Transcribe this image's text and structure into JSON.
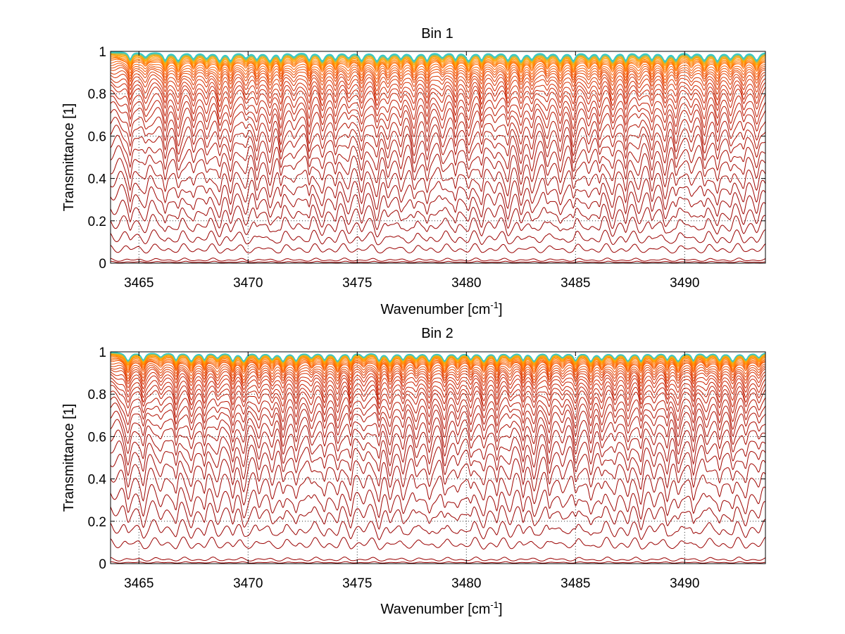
{
  "chart_data": [
    {
      "type": "line",
      "title": "Bin 1",
      "xlabel": "Wavenumber [cm",
      "xlabel_sup": "-1",
      "xlabel_end": "]",
      "ylabel": "Transmittance [1]",
      "xlim": [
        3463.7,
        3493.7
      ],
      "ylim": [
        0,
        1
      ],
      "xticks": [
        3465,
        3470,
        3475,
        3480,
        3485,
        3490
      ],
      "yticks": [
        0,
        0.2,
        0.4,
        0.6,
        0.8,
        1
      ],
      "ytick_labels": [
        "0",
        "0.2",
        "0.4",
        "0.6",
        "0.8",
        "1"
      ],
      "grid": true,
      "series_count": 40,
      "line_baselines": [
        0.005,
        0.015,
        0.07,
        0.13,
        0.2,
        0.27,
        0.34,
        0.4,
        0.46,
        0.52,
        0.57,
        0.62,
        0.66,
        0.7,
        0.74,
        0.77,
        0.8,
        0.83,
        0.85,
        0.87,
        0.89,
        0.905,
        0.92,
        0.93,
        0.94,
        0.95,
        0.96,
        0.965,
        0.97,
        0.975,
        0.98,
        0.984,
        0.987,
        0.99,
        0.992,
        0.994,
        0.996,
        0.997,
        0.998,
        0.999
      ],
      "absorption_lines": [
        3464.6,
        3465.3,
        3466.2,
        3466.8,
        3467.5,
        3468.1,
        3468.7,
        3469.2,
        3469.9,
        3470.4,
        3471.0,
        3471.5,
        3472.1,
        3472.8,
        3473.4,
        3474.0,
        3474.6,
        3475.2,
        3475.9,
        3476.4,
        3477.0,
        3477.6,
        3478.2,
        3478.9,
        3479.5,
        3480.1,
        3480.7,
        3481.3,
        3481.9,
        3482.5,
        3483.0,
        3483.7,
        3484.3,
        3484.9,
        3485.6,
        3486.1,
        3486.7,
        3487.3,
        3487.9,
        3488.5,
        3489.1,
        3489.6,
        3490.3,
        3490.9,
        3491.5,
        3492.1,
        3492.7,
        3493.3
      ],
      "colors": [
        "#990000",
        "#cc2200",
        "#ff6600",
        "#ffaa00",
        "#33cccc"
      ]
    },
    {
      "type": "line",
      "title": "Bin 2",
      "xlabel": "Wavenumber [cm",
      "xlabel_sup": "-1",
      "xlabel_end": "]",
      "ylabel": "Transmittance [1]",
      "xlim": [
        3463.7,
        3493.7
      ],
      "ylim": [
        0,
        1
      ],
      "xticks": [
        3465,
        3470,
        3475,
        3480,
        3485,
        3490
      ],
      "yticks": [
        0,
        0.2,
        0.4,
        0.6,
        0.8,
        1
      ],
      "ytick_labels": [
        "0",
        "0.2",
        "0.4",
        "0.6",
        "0.8",
        "1"
      ],
      "grid": true,
      "series_count": 40,
      "line_baselines": [
        0.005,
        0.02,
        0.1,
        0.18,
        0.27,
        0.35,
        0.43,
        0.5,
        0.56,
        0.61,
        0.66,
        0.7,
        0.74,
        0.77,
        0.8,
        0.83,
        0.85,
        0.87,
        0.89,
        0.905,
        0.92,
        0.93,
        0.94,
        0.95,
        0.96,
        0.965,
        0.97,
        0.975,
        0.98,
        0.984,
        0.987,
        0.99,
        0.992,
        0.994,
        0.996,
        0.997,
        0.998,
        0.999,
        0.9995,
        1.0
      ],
      "absorption_lines": [
        3464.5,
        3465.2,
        3466.0,
        3466.7,
        3467.4,
        3468.0,
        3468.6,
        3469.3,
        3469.8,
        3470.5,
        3471.1,
        3471.6,
        3472.2,
        3472.9,
        3473.5,
        3474.1,
        3474.7,
        3475.3,
        3476.0,
        3476.5,
        3477.1,
        3477.7,
        3478.3,
        3479.0,
        3479.6,
        3480.2,
        3480.8,
        3481.4,
        3482.0,
        3482.6,
        3483.1,
        3483.8,
        3484.4,
        3485.0,
        3485.7,
        3486.2,
        3486.8,
        3487.4,
        3488.0,
        3488.6,
        3489.2,
        3489.7,
        3490.4,
        3491.0,
        3491.6,
        3492.2,
        3492.8,
        3493.4
      ],
      "colors": [
        "#990000",
        "#cc2200",
        "#ff6600",
        "#ffaa00",
        "#33cccc"
      ]
    }
  ]
}
